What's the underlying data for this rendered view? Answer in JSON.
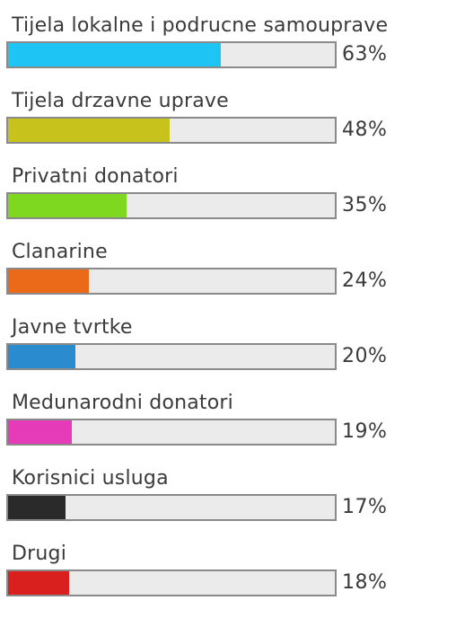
{
  "chart_data": {
    "type": "bar",
    "orientation": "horizontal",
    "title": "",
    "xlabel": "",
    "ylabel": "",
    "xlim": [
      0,
      100
    ],
    "unit": "%",
    "grid": false,
    "legend": "none",
    "categories": [
      "Tijela lokalne i podrucne samouprave",
      "Tijela drzavne uprave",
      "Privatni donatori",
      "Clanarine",
      "Javne tvrtke",
      "Medunarodni donatori",
      "Korisnici usluga",
      "Drugi"
    ],
    "values": [
      63,
      48,
      35,
      24,
      20,
      19,
      17,
      18
    ],
    "value_labels": [
      "63%",
      "48%",
      "35%",
      "24%",
      "20%",
      "19%",
      "17%",
      "18%"
    ],
    "colors": [
      "#1ec4f4",
      "#c7c21c",
      "#7ed81f",
      "#ea6a1a",
      "#2a8cce",
      "#e63bb8",
      "#2a2a2a",
      "#d9201e"
    ]
  }
}
